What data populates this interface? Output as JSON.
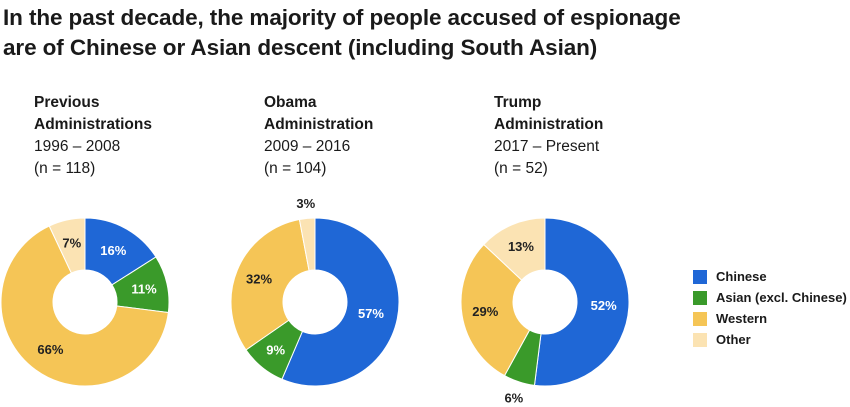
{
  "title_lines": [
    "In the past decade, the majority of people accused of espionage",
    "are of Chinese or Asian descent (including South Asian)"
  ],
  "colors": {
    "Chinese": "#1f67d6",
    "Asian (excl. Chinese)": "#3a9a2a",
    "Western": "#f5c556",
    "Other": "#fbe3b3"
  },
  "legend": [
    "Chinese",
    "Asian (excl. Chinese)",
    "Western",
    "Other"
  ],
  "chart_data": [
    {
      "type": "pie",
      "title_lines": [
        "Previous",
        "Administrations"
      ],
      "subtitle_lines": [
        "1996 – 2008",
        "(n = 118)"
      ],
      "slices": [
        {
          "category": "Chinese",
          "value": 16,
          "label": "16%"
        },
        {
          "category": "Asian (excl. Chinese)",
          "value": 11,
          "label": "11%"
        },
        {
          "category": "Western",
          "value": 66,
          "label": "66%"
        },
        {
          "category": "Other",
          "value": 7,
          "label": "7%"
        }
      ]
    },
    {
      "type": "pie",
      "title_lines": [
        "Obama",
        "Administration"
      ],
      "subtitle_lines": [
        "2009 – 2016",
        "(n = 104)"
      ],
      "slices": [
        {
          "category": "Chinese",
          "value": 57,
          "label": "57%"
        },
        {
          "category": "Asian (excl. Chinese)",
          "value": 9,
          "label": "9%"
        },
        {
          "category": "Western",
          "value": 32,
          "label": "32%"
        },
        {
          "category": "Other",
          "value": 3,
          "label": "3%"
        }
      ]
    },
    {
      "type": "pie",
      "title_lines": [
        "Trump",
        "Administration"
      ],
      "subtitle_lines": [
        "2017 – Present",
        "(n = 52)"
      ],
      "slices": [
        {
          "category": "Chinese",
          "value": 52,
          "label": "52%"
        },
        {
          "category": "Asian (excl. Chinese)",
          "value": 6,
          "label": "6%"
        },
        {
          "category": "Western",
          "value": 29,
          "label": "29%"
        },
        {
          "category": "Other",
          "value": 13,
          "label": "13%"
        }
      ]
    }
  ]
}
